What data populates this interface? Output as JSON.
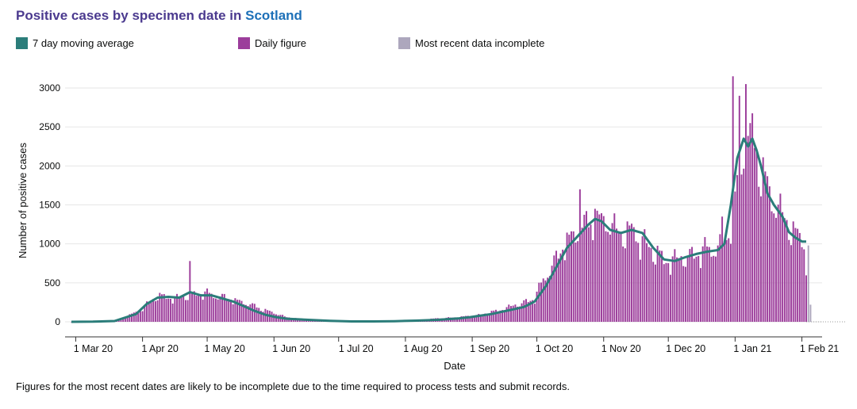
{
  "header": {
    "title_prefix": "Positive cases by specimen date in ",
    "title_place": "Scotland"
  },
  "legend": [
    {
      "label": "7 day moving average",
      "color": "#2b7d7a"
    },
    {
      "label": "Daily figure",
      "color": "#9c3d9b"
    },
    {
      "label": "Most recent data incomplete",
      "color": "#ada7bd"
    }
  ],
  "footnote": "Figures for the most recent dates are likely to be incomplete due to the time required to process tests and submit records.",
  "chart_data": {
    "type": "bar",
    "title": "Positive cases by specimen date in Scotland",
    "xlabel": "Date",
    "ylabel": "Number of positive cases",
    "ylim": [
      0,
      3300
    ],
    "yticks": [
      0,
      500,
      1000,
      1500,
      2000,
      2500,
      3000
    ],
    "x_start": "2020-02-28",
    "x_end": "2021-02-05",
    "xticks": [
      {
        "day": 2,
        "label": "1 Mar 20"
      },
      {
        "day": 33,
        "label": "1 Apr 20"
      },
      {
        "day": 63,
        "label": "1 May 20"
      },
      {
        "day": 94,
        "label": "1 Jun 20"
      },
      {
        "day": 124,
        "label": "1 Jul 20"
      },
      {
        "day": 155,
        "label": "1 Aug 20"
      },
      {
        "day": 186,
        "label": "1 Sep 20"
      },
      {
        "day": 216,
        "label": "1 Oct 20"
      },
      {
        "day": 247,
        "label": "1 Nov 20"
      },
      {
        "day": 277,
        "label": "1 Dec 20"
      },
      {
        "day": 308,
        "label": "1 Jan 21"
      },
      {
        "day": 339,
        "label": "1 Feb 21"
      }
    ],
    "series": [
      {
        "name": "Daily figure",
        "color": "#9c3d9b",
        "anchors": [
          [
            0,
            0
          ],
          [
            10,
            2
          ],
          [
            20,
            10
          ],
          [
            30,
            120
          ],
          [
            40,
            330
          ],
          [
            50,
            300
          ],
          [
            60,
            370
          ],
          [
            65,
            350
          ],
          [
            70,
            320
          ],
          [
            80,
            250
          ],
          [
            90,
            150
          ],
          [
            100,
            60
          ],
          [
            110,
            20
          ],
          [
            120,
            10
          ],
          [
            130,
            5
          ],
          [
            140,
            5
          ],
          [
            150,
            10
          ],
          [
            160,
            20
          ],
          [
            170,
            45
          ],
          [
            180,
            60
          ],
          [
            190,
            90
          ],
          [
            200,
            160
          ],
          [
            210,
            250
          ],
          [
            215,
            300
          ],
          [
            220,
            600
          ],
          [
            225,
            800
          ],
          [
            230,
            1050
          ],
          [
            235,
            1150
          ],
          [
            240,
            1250
          ],
          [
            245,
            1300
          ],
          [
            250,
            1250
          ],
          [
            255,
            1150
          ],
          [
            260,
            1150
          ],
          [
            265,
            1050
          ],
          [
            270,
            900
          ],
          [
            275,
            800
          ],
          [
            280,
            790
          ],
          [
            285,
            830
          ],
          [
            290,
            870
          ],
          [
            295,
            920
          ],
          [
            300,
            980
          ],
          [
            305,
            1100
          ],
          [
            308,
            1600
          ],
          [
            311,
            2100
          ],
          [
            314,
            2350
          ],
          [
            317,
            2300
          ],
          [
            320,
            2000
          ],
          [
            325,
            1550
          ],
          [
            330,
            1400
          ],
          [
            335,
            1150
          ],
          [
            340,
            1000
          ],
          [
            341,
            800
          ]
        ],
        "spikes": [
          [
            55,
            780
          ],
          [
            307,
            3150
          ],
          [
            310,
            2900
          ],
          [
            313,
            3050
          ],
          [
            315,
            2550
          ],
          [
            302,
            1350
          ],
          [
            236,
            1700
          ],
          [
            243,
            1450
          ]
        ]
      },
      {
        "name": "Most recent data incomplete",
        "color": "#ada7bd",
        "bars": [
          [
            342,
            980
          ],
          [
            343,
            220
          ]
        ]
      },
      {
        "name": "7 day moving average",
        "color": "#2b7d7a",
        "points": [
          [
            0,
            0
          ],
          [
            10,
            2
          ],
          [
            20,
            10
          ],
          [
            30,
            100
          ],
          [
            35,
            230
          ],
          [
            40,
            310
          ],
          [
            45,
            320
          ],
          [
            50,
            310
          ],
          [
            55,
            380
          ],
          [
            60,
            340
          ],
          [
            65,
            340
          ],
          [
            70,
            300
          ],
          [
            75,
            260
          ],
          [
            80,
            200
          ],
          [
            85,
            140
          ],
          [
            90,
            90
          ],
          [
            95,
            60
          ],
          [
            100,
            40
          ],
          [
            110,
            25
          ],
          [
            120,
            12
          ],
          [
            130,
            5
          ],
          [
            140,
            5
          ],
          [
            150,
            8
          ],
          [
            160,
            15
          ],
          [
            170,
            25
          ],
          [
            180,
            45
          ],
          [
            185,
            60
          ],
          [
            190,
            80
          ],
          [
            195,
            100
          ],
          [
            200,
            130
          ],
          [
            205,
            160
          ],
          [
            210,
            190
          ],
          [
            215,
            260
          ],
          [
            220,
            450
          ],
          [
            225,
            700
          ],
          [
            230,
            950
          ],
          [
            235,
            1100
          ],
          [
            240,
            1250
          ],
          [
            243,
            1320
          ],
          [
            246,
            1290
          ],
          [
            250,
            1180
          ],
          [
            255,
            1140
          ],
          [
            260,
            1180
          ],
          [
            265,
            1140
          ],
          [
            270,
            950
          ],
          [
            275,
            800
          ],
          [
            280,
            780
          ],
          [
            285,
            830
          ],
          [
            290,
            870
          ],
          [
            295,
            900
          ],
          [
            300,
            920
          ],
          [
            303,
            1000
          ],
          [
            306,
            1500
          ],
          [
            309,
            2100
          ],
          [
            312,
            2350
          ],
          [
            314,
            2250
          ],
          [
            316,
            2350
          ],
          [
            318,
            2200
          ],
          [
            320,
            2000
          ],
          [
            323,
            1650
          ],
          [
            326,
            1500
          ],
          [
            330,
            1350
          ],
          [
            333,
            1150
          ],
          [
            336,
            1080
          ],
          [
            339,
            1030
          ],
          [
            341,
            1030
          ]
        ]
      }
    ]
  }
}
